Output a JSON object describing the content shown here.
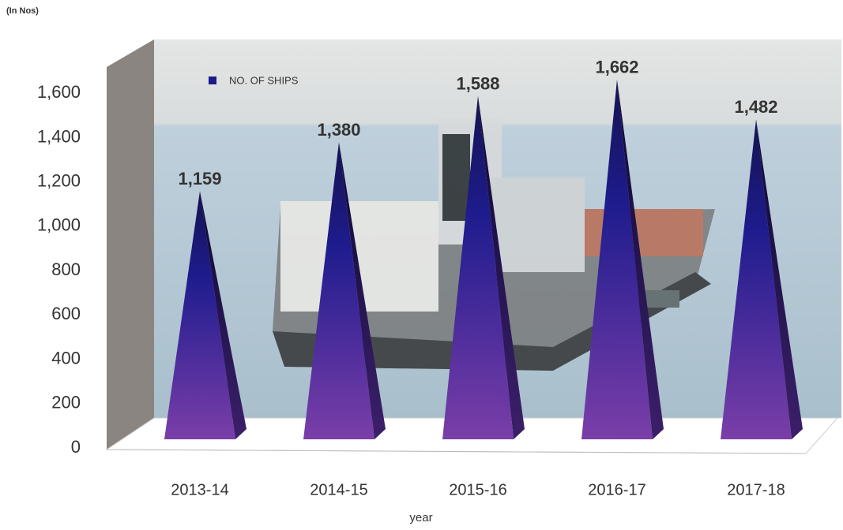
{
  "chart_data": {
    "type": "pyramid",
    "unit_label": "(In Nos)",
    "x_label": "year",
    "categories": [
      "2013-14",
      "2014-15",
      "2015-16",
      "2016-17",
      "2017-18"
    ],
    "series": [
      {
        "name": "NO. OF SHIPS",
        "color": "#1c1a8a",
        "values": [
          1159,
          1380,
          1588,
          1662,
          1482
        ],
        "value_labels": [
          "1,159",
          "1,380",
          "1,588",
          "1,662",
          "1,482"
        ]
      }
    ],
    "ylim": [
      0,
      1800
    ],
    "yticks": [
      0,
      200,
      400,
      600,
      800,
      {
        "value": 1000,
        "label": "1,000"
      },
      {
        "value": 1200,
        "label": "1,200"
      },
      {
        "value": 1400,
        "label": "1,400"
      },
      {
        "value": 1600,
        "label": "1,600"
      }
    ],
    "grid": false,
    "legend": "top-left"
  }
}
